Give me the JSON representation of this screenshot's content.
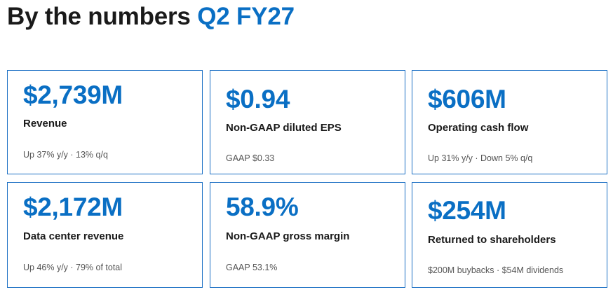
{
  "header": {
    "title": "By the numbers",
    "period": "Q2 FY27"
  },
  "cards": [
    {
      "value": "$2,739M",
      "label": "Revenue",
      "note": "Up 37% y/y · 13% q/q"
    },
    {
      "value": "$0.94",
      "label": "Non-GAAP diluted EPS",
      "note": "GAAP $0.33"
    },
    {
      "value": "$606M",
      "label": "Operating cash flow",
      "note": "Up 31% y/y · Down 5% q/q"
    },
    {
      "value": "$2,172M",
      "label": "Data center revenue",
      "note": "Up 46% y/y · 79% of total"
    },
    {
      "value": "58.9%",
      "label": "Non-GAAP gross margin",
      "note": "GAAP 53.1%"
    },
    {
      "value": "$254M",
      "label": "Returned to shareholders",
      "note": "$200M buybacks · $54M dividends"
    }
  ],
  "colors": {
    "accent": "#0a6fc4",
    "border": "#1b6fc4",
    "text": "#1a1a1a",
    "muted": "#555555"
  }
}
